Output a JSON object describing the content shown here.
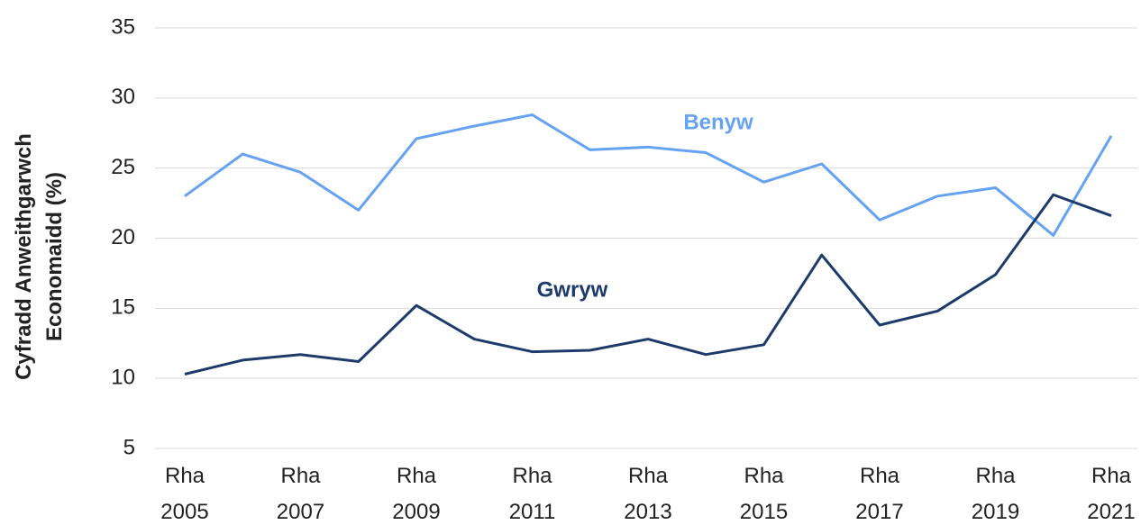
{
  "chart_data": {
    "type": "line",
    "y_label": "Cyfradd Anweithgarwch Economaidd (%)",
    "categories": [
      "Rha 2005",
      null,
      "Rha 2007",
      null,
      "Rha 2009",
      null,
      "Rha 2011",
      null,
      "Rha 2013",
      null,
      "Rha 2015",
      null,
      "Rha 2017",
      null,
      "Rha 2019",
      null,
      "Rha 2021"
    ],
    "series": [
      {
        "name": "Benyw",
        "color": "#65a2f2",
        "values": [
          23.0,
          26.0,
          24.7,
          22.0,
          27.1,
          28.0,
          28.8,
          26.3,
          26.5,
          26.1,
          24.0,
          25.3,
          21.3,
          23.0,
          23.6,
          20.2,
          27.3
        ]
      },
      {
        "name": "Gwryw",
        "color": "#1c3b6b",
        "values": [
          10.3,
          11.3,
          11.7,
          11.2,
          15.2,
          12.8,
          11.9,
          12.0,
          12.8,
          11.7,
          12.4,
          18.8,
          13.8,
          14.8,
          17.4,
          23.1,
          21.6
        ]
      }
    ],
    "ylim": [
      5,
      35
    ],
    "yticks": [
      5,
      10,
      15,
      20,
      25,
      30,
      35
    ],
    "grid": true
  }
}
